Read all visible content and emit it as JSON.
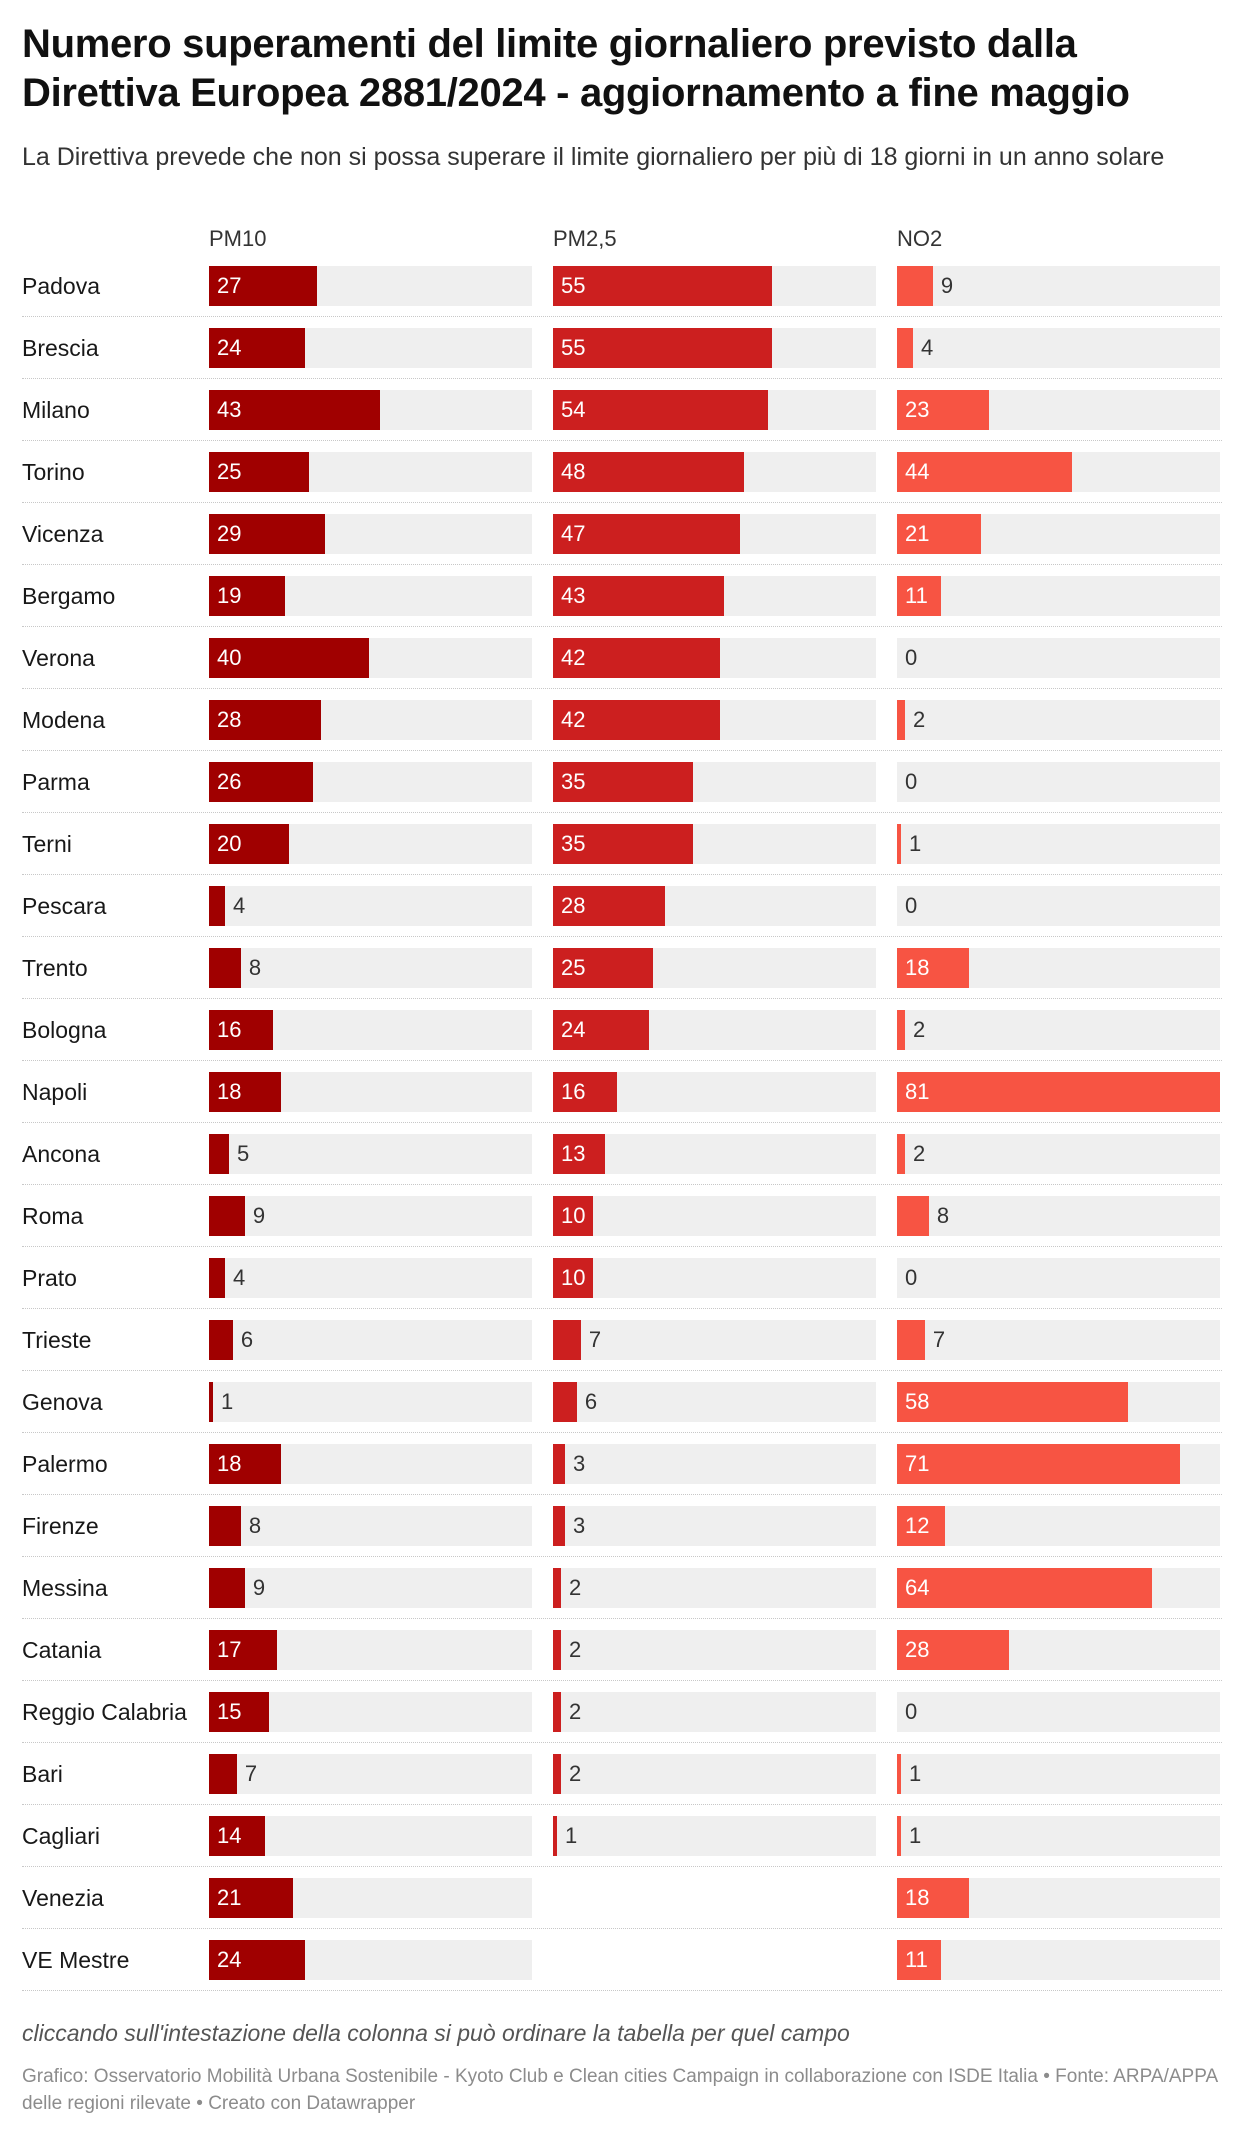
{
  "header": {
    "title": "Numero superamenti del limite giornaliero previsto dalla Direttiva Europea 2881/2024 - aggiornamento a fine maggio",
    "subtitle": "La Direttiva prevede che non si possa superare il limite giornaliero per più di 18 giorni in un anno solare"
  },
  "footer": {
    "note": "cliccando sull'intestazione della colonna si può ordinare la tabella per quel campo",
    "source": "Grafico: Osservatorio Mobilità Urbana Sostenibile - Kyoto Club e Clean cities Campaign in collaborazione con ISDE Italia • Fonte: ARPA/APPA delle regioni rilevate • Creato con Datawrapper"
  },
  "colors": {
    "PM10": "#a00000",
    "PM2,5": "#cc1f1f",
    "NO2": "#f75443",
    "track": "#efefef"
  },
  "chart_data": {
    "type": "table",
    "columns": [
      "PM10",
      "PM2,5",
      "NO2"
    ],
    "scale_max": 81,
    "rows": [
      {
        "city": "Padova",
        "values": [
          27,
          55,
          9
        ]
      },
      {
        "city": "Brescia",
        "values": [
          24,
          55,
          4
        ]
      },
      {
        "city": "Milano",
        "values": [
          43,
          54,
          23
        ]
      },
      {
        "city": "Torino",
        "values": [
          25,
          48,
          44
        ]
      },
      {
        "city": "Vicenza",
        "values": [
          29,
          47,
          21
        ]
      },
      {
        "city": "Bergamo",
        "values": [
          19,
          43,
          11
        ]
      },
      {
        "city": "Verona",
        "values": [
          40,
          42,
          0
        ]
      },
      {
        "city": "Modena",
        "values": [
          28,
          42,
          2
        ]
      },
      {
        "city": "Parma",
        "values": [
          26,
          35,
          0
        ]
      },
      {
        "city": "Terni",
        "values": [
          20,
          35,
          1
        ]
      },
      {
        "city": "Pescara",
        "values": [
          4,
          28,
          0
        ]
      },
      {
        "city": "Trento",
        "values": [
          8,
          25,
          18
        ]
      },
      {
        "city": "Bologna",
        "values": [
          16,
          24,
          2
        ]
      },
      {
        "city": "Napoli",
        "values": [
          18,
          16,
          81
        ]
      },
      {
        "city": "Ancona",
        "values": [
          5,
          13,
          2
        ]
      },
      {
        "city": "Roma",
        "values": [
          9,
          10,
          8
        ]
      },
      {
        "city": "Prato",
        "values": [
          4,
          10,
          0
        ]
      },
      {
        "city": "Trieste",
        "values": [
          6,
          7,
          7
        ]
      },
      {
        "city": "Genova",
        "values": [
          1,
          6,
          58
        ]
      },
      {
        "city": "Palermo",
        "values": [
          18,
          3,
          71
        ]
      },
      {
        "city": "Firenze",
        "values": [
          8,
          3,
          12
        ]
      },
      {
        "city": "Messina",
        "values": [
          9,
          2,
          64
        ]
      },
      {
        "city": "Catania",
        "values": [
          17,
          2,
          28
        ]
      },
      {
        "city": "Reggio Calabria",
        "values": [
          15,
          2,
          0
        ]
      },
      {
        "city": "Bari",
        "values": [
          7,
          2,
          1
        ]
      },
      {
        "city": "Cagliari",
        "values": [
          14,
          1,
          1
        ]
      },
      {
        "city": "Venezia",
        "values": [
          21,
          null,
          18
        ]
      },
      {
        "city": "VE Mestre",
        "values": [
          24,
          null,
          11
        ]
      }
    ]
  }
}
